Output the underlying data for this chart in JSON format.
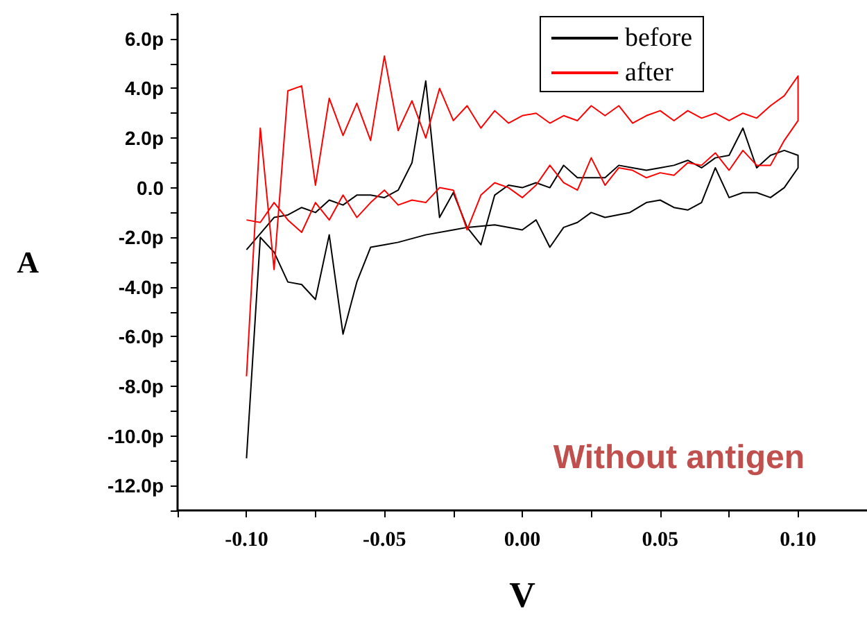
{
  "chart_data": {
    "type": "line",
    "xlabel": "V",
    "ylabel": "A",
    "annotations": [
      "Without antigen"
    ],
    "xlim": [
      -0.125,
      0.125
    ],
    "ylim": [
      -13,
      7
    ],
    "xticks": [
      {
        "value": -0.125,
        "label": null
      },
      {
        "value": -0.1,
        "label": "-0.10"
      },
      {
        "value": -0.075,
        "label": null
      },
      {
        "value": -0.05,
        "label": "-0.05"
      },
      {
        "value": -0.025,
        "label": null
      },
      {
        "value": 0,
        "label": "0.00"
      },
      {
        "value": 0.025,
        "label": null
      },
      {
        "value": 0.05,
        "label": "0.05"
      },
      {
        "value": 0.075,
        "label": null
      },
      {
        "value": 0.1,
        "label": "0.10"
      },
      {
        "value": 0.125,
        "label": null
      }
    ],
    "yticks": [
      {
        "value": -13,
        "label": null
      },
      {
        "value": -12,
        "label": "-12.0p"
      },
      {
        "value": -11,
        "label": null
      },
      {
        "value": -10,
        "label": "-10.0p"
      },
      {
        "value": -9,
        "label": null
      },
      {
        "value": -8,
        "label": "-8.0p"
      },
      {
        "value": -7,
        "label": null
      },
      {
        "value": -6,
        "label": "-6.0p"
      },
      {
        "value": -5,
        "label": null
      },
      {
        "value": -4,
        "label": "-4.0p"
      },
      {
        "value": -3,
        "label": null
      },
      {
        "value": -2,
        "label": "-2.0p"
      },
      {
        "value": -1,
        "label": null
      },
      {
        "value": 0,
        "label": "0.0"
      },
      {
        "value": 1,
        "label": null
      },
      {
        "value": 2,
        "label": "2.0p"
      },
      {
        "value": 3,
        "label": null
      },
      {
        "value": 4,
        "label": "4.0p"
      },
      {
        "value": 5,
        "label": null
      },
      {
        "value": 6,
        "label": "6.0p"
      },
      {
        "value": 7,
        "label": null
      }
    ],
    "grid": false,
    "legend": "top right",
    "marker": "none",
    "line_style": "solid",
    "series": [
      {
        "name": "before",
        "color": "#000000",
        "x": [
          -0.1,
          -0.095,
          -0.09,
          -0.085,
          -0.08,
          -0.075,
          -0.07,
          -0.065,
          -0.06,
          -0.055,
          -0.05,
          -0.045,
          -0.035,
          -0.025,
          -0.02,
          -0.01,
          0.0,
          0.005,
          0.01,
          0.015,
          0.02,
          0.025,
          0.03,
          0.039,
          0.045,
          0.05,
          0.055,
          0.06,
          0.065,
          0.07,
          0.075,
          0.08,
          0.085,
          0.09,
          0.095,
          0.1,
          0.1,
          0.095,
          0.09,
          0.085,
          0.08,
          0.075,
          0.07,
          0.065,
          0.06,
          0.055,
          0.05,
          0.045,
          0.04,
          0.035,
          0.03,
          0.025,
          0.02,
          0.015,
          0.01,
          0.005,
          0.0,
          -0.005,
          -0.01,
          -0.015,
          -0.02,
          -0.025,
          -0.03,
          -0.035,
          -0.04,
          -0.045,
          -0.05,
          -0.055,
          -0.06,
          -0.065,
          -0.07,
          -0.075,
          -0.08,
          -0.085,
          -0.09,
          -0.1
        ],
        "values": [
          -10.9,
          -2.0,
          -2.6,
          -3.8,
          -3.9,
          -4.5,
          -1.9,
          -5.9,
          -3.8,
          -2.4,
          -2.3,
          -2.2,
          -1.9,
          -1.7,
          -1.6,
          -1.5,
          -1.7,
          -1.3,
          -2.4,
          -1.6,
          -1.4,
          -1.0,
          -1.2,
          -1.0,
          -0.6,
          -0.5,
          -0.8,
          -0.9,
          -0.6,
          0.8,
          -0.4,
          -0.2,
          -0.2,
          -0.4,
          0.0,
          0.8,
          1.3,
          1.5,
          1.3,
          0.8,
          2.4,
          1.3,
          1.2,
          0.8,
          1.1,
          0.9,
          0.8,
          0.7,
          0.8,
          0.9,
          0.4,
          0.4,
          0.4,
          0.9,
          0.0,
          0.2,
          0.0,
          0.1,
          -0.3,
          -2.3,
          -1.6,
          -0.2,
          -1.2,
          4.3,
          1.0,
          -0.1,
          -0.4,
          -0.3,
          -0.3,
          -0.7,
          -0.5,
          -1.0,
          -0.8,
          -1.1,
          -1.2,
          -2.5
        ]
      },
      {
        "name": "after",
        "color": "#ff0000",
        "x": [
          -0.1,
          -0.095,
          -0.09,
          -0.085,
          -0.08,
          -0.075,
          -0.07,
          -0.065,
          -0.06,
          -0.055,
          -0.05,
          -0.045,
          -0.04,
          -0.035,
          -0.03,
          -0.025,
          -0.02,
          -0.015,
          -0.01,
          -0.005,
          0.0,
          0.005,
          0.01,
          0.015,
          0.02,
          0.025,
          0.03,
          0.035,
          0.04,
          0.045,
          0.05,
          0.055,
          0.06,
          0.065,
          0.07,
          0.075,
          0.08,
          0.085,
          0.09,
          0.095,
          0.1,
          0.1,
          0.095,
          0.09,
          0.085,
          0.08,
          0.075,
          0.07,
          0.065,
          0.06,
          0.055,
          0.05,
          0.045,
          0.04,
          0.035,
          0.03,
          0.025,
          0.02,
          0.015,
          0.01,
          0.005,
          0.0,
          -0.005,
          -0.01,
          -0.015,
          -0.02,
          -0.025,
          -0.03,
          -0.035,
          -0.04,
          -0.045,
          -0.05,
          -0.055,
          -0.06,
          -0.065,
          -0.07,
          -0.075,
          -0.08,
          -0.085,
          -0.09,
          -0.095,
          -0.1
        ],
        "values": [
          -7.6,
          2.4,
          -3.3,
          3.9,
          4.1,
          0.1,
          3.6,
          2.1,
          3.4,
          1.9,
          5.3,
          2.3,
          3.5,
          2.0,
          4.0,
          2.7,
          3.3,
          2.4,
          3.1,
          2.6,
          2.9,
          3.0,
          2.6,
          2.9,
          2.7,
          3.3,
          2.9,
          3.3,
          2.6,
          2.9,
          3.1,
          2.7,
          3.1,
          2.8,
          3.0,
          2.7,
          3.0,
          2.8,
          3.3,
          3.7,
          4.5,
          2.7,
          1.9,
          0.9,
          0.9,
          1.5,
          0.7,
          1.4,
          0.9,
          1.0,
          0.5,
          0.6,
          0.4,
          0.7,
          0.8,
          0.1,
          1.2,
          -0.1,
          0.2,
          0.9,
          0.1,
          -0.4,
          0.0,
          0.2,
          -0.3,
          -1.7,
          -0.1,
          0.0,
          -0.6,
          -0.5,
          -0.7,
          -0.1,
          -0.6,
          -1.2,
          -0.3,
          -1.3,
          -0.6,
          -1.8,
          -1.3,
          -0.6,
          -1.4,
          -1.3
        ]
      }
    ]
  }
}
